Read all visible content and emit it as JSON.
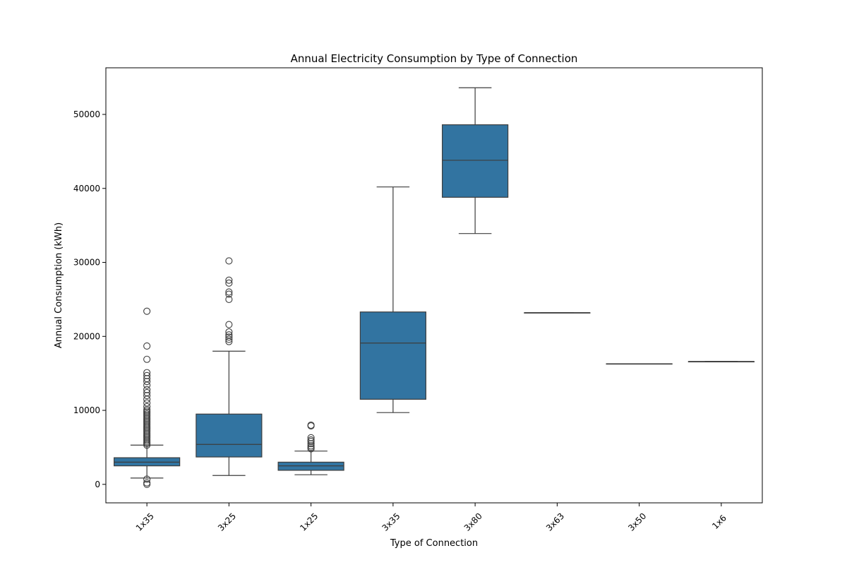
{
  "chart_data": {
    "type": "box",
    "title": "Annual Electricity Consumption by Type of Connection",
    "xlabel": "Type of Connection",
    "ylabel": "Annual Consumption (kWh)",
    "ylim": [
      -2500,
      56300
    ],
    "yticks": [
      0,
      10000,
      20000,
      30000,
      40000,
      50000
    ],
    "grid": false,
    "box_color": "#3274a1",
    "edge_color": "#3d3d3d",
    "categories": [
      "1x35",
      "3x25",
      "1x25",
      "3x35",
      "3x80",
      "3x63",
      "3x50",
      "1x6"
    ],
    "boxes": [
      {
        "category": "1x35",
        "whisker_low": 850,
        "q1": 2500,
        "median": 3000,
        "q3": 3600,
        "whisker_high": 5300,
        "outliers": [
          0,
          200,
          700,
          5300,
          5500,
          5700,
          5900,
          6100,
          6300,
          6500,
          6700,
          6900,
          7100,
          7300,
          7500,
          7700,
          7900,
          8100,
          8300,
          8500,
          8700,
          8900,
          9100,
          9300,
          9500,
          9700,
          9900,
          10100,
          10500,
          11000,
          11500,
          12000,
          12400,
          12800,
          13400,
          13900,
          14300,
          14700,
          15100,
          16900,
          18700,
          23400
        ]
      },
      {
        "category": "3x25",
        "whisker_low": 1200,
        "q1": 3700,
        "median": 5400,
        "q3": 9500,
        "whisker_high": 18000,
        "outliers": [
          19300,
          19600,
          19900,
          20200,
          20600,
          21600,
          25000,
          25700,
          26000,
          27200,
          27600,
          30200
        ]
      },
      {
        "category": "1x25",
        "whisker_low": 1300,
        "q1": 1900,
        "median": 2500,
        "q3": 3000,
        "whisker_high": 4500,
        "outliers": [
          4800,
          5000,
          5200,
          5500,
          5800,
          6000,
          6300,
          7900,
          8000
        ]
      },
      {
        "category": "3x35",
        "whisker_low": 9700,
        "q1": 11500,
        "median": 19100,
        "q3": 23300,
        "whisker_high": 40200,
        "outliers": []
      },
      {
        "category": "3x80",
        "whisker_low": 33900,
        "q1": 38800,
        "median": 43800,
        "q3": 48600,
        "whisker_high": 53600,
        "outliers": []
      },
      {
        "category": "3x63",
        "whisker_low": 23200,
        "q1": 23200,
        "median": 23200,
        "q3": 23200,
        "whisker_high": 23200,
        "outliers": []
      },
      {
        "category": "3x50",
        "whisker_low": 16300,
        "q1": 16300,
        "median": 16300,
        "q3": 16300,
        "whisker_high": 16300,
        "outliers": []
      },
      {
        "category": "1x6",
        "whisker_low": 16600,
        "q1": 16600,
        "median": 16600,
        "q3": 16600,
        "whisker_high": 16600,
        "outliers": []
      }
    ]
  }
}
